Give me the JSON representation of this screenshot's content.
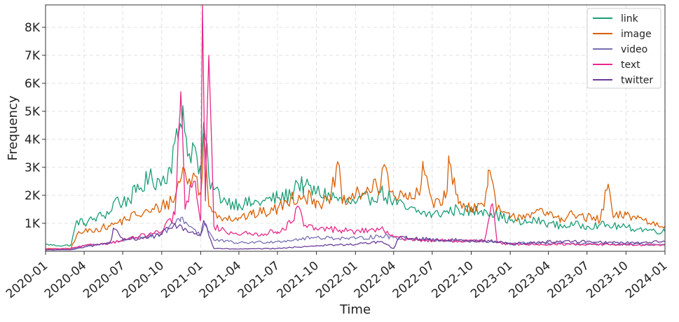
{
  "chart_data": {
    "type": "line",
    "xlabel": "Time",
    "ylabel": "Frequency",
    "x_range": [
      "2020-01-01",
      "2024-01-01"
    ],
    "ylim": [
      0,
      8800
    ],
    "grid": true,
    "legend_position": "top-right",
    "y_ticks": [
      {
        "value": 1000,
        "label": "1K"
      },
      {
        "value": 2000,
        "label": "2K"
      },
      {
        "value": 3000,
        "label": "3K"
      },
      {
        "value": 4000,
        "label": "4K"
      },
      {
        "value": 5000,
        "label": "5K"
      },
      {
        "value": 6000,
        "label": "6K"
      },
      {
        "value": 7000,
        "label": "7K"
      },
      {
        "value": 8000,
        "label": "8K"
      }
    ],
    "x_ticks": [
      {
        "value": "2020-01-01",
        "label": "2020-01"
      },
      {
        "value": "2020-04-01",
        "label": "2020-04"
      },
      {
        "value": "2020-07-01",
        "label": "2020-07"
      },
      {
        "value": "2020-10-01",
        "label": "2020-10"
      },
      {
        "value": "2021-01-01",
        "label": "2021-01"
      },
      {
        "value": "2021-04-01",
        "label": "2021-04"
      },
      {
        "value": "2021-07-01",
        "label": "2021-07"
      },
      {
        "value": "2021-10-01",
        "label": "2021-10"
      },
      {
        "value": "2022-01-01",
        "label": "2022-01"
      },
      {
        "value": "2022-04-01",
        "label": "2022-04"
      },
      {
        "value": "2022-07-01",
        "label": "2022-07"
      },
      {
        "value": "2022-10-01",
        "label": "2022-10"
      },
      {
        "value": "2023-01-01",
        "label": "2023-01"
      },
      {
        "value": "2023-04-01",
        "label": "2023-04"
      },
      {
        "value": "2023-07-01",
        "label": "2023-07"
      },
      {
        "value": "2023-10-01",
        "label": "2023-10"
      },
      {
        "value": "2024-01-01",
        "label": "2024-01"
      }
    ],
    "series": [
      {
        "name": "link",
        "color": "#1b9e77",
        "points": [
          [
            "2020-01-01",
            250
          ],
          [
            "2020-02-01",
            200
          ],
          [
            "2020-03-01",
            220
          ],
          [
            "2020-03-15",
            1100
          ],
          [
            "2020-04-01",
            1000
          ],
          [
            "2020-05-01",
            1200
          ],
          [
            "2020-06-01",
            1400
          ],
          [
            "2020-06-15",
            1900
          ],
          [
            "2020-07-01",
            1700
          ],
          [
            "2020-08-01",
            2100
          ],
          [
            "2020-09-01",
            2600
          ],
          [
            "2020-10-01",
            2500
          ],
          [
            "2020-10-20",
            3000
          ],
          [
            "2020-11-10",
            4200
          ],
          [
            "2020-11-20",
            5200
          ],
          [
            "2020-12-01",
            3400
          ],
          [
            "2020-12-15",
            3800
          ],
          [
            "2021-01-01",
            2600
          ],
          [
            "2021-01-08",
            4600
          ],
          [
            "2021-01-20",
            2700
          ],
          [
            "2021-02-01",
            2200
          ],
          [
            "2021-03-01",
            1800
          ],
          [
            "2021-04-01",
            1700
          ],
          [
            "2021-05-01",
            1700
          ],
          [
            "2021-06-01",
            1800
          ],
          [
            "2021-07-01",
            1900
          ],
          [
            "2021-08-01",
            2000
          ],
          [
            "2021-08-15",
            2500
          ],
          [
            "2021-09-01",
            2300
          ],
          [
            "2021-10-01",
            2100
          ],
          [
            "2021-11-01",
            2000
          ],
          [
            "2021-12-01",
            1800
          ],
          [
            "2022-01-01",
            1700
          ],
          [
            "2022-02-01",
            1900
          ],
          [
            "2022-03-01",
            2100
          ],
          [
            "2022-04-01",
            1800
          ],
          [
            "2022-05-01",
            1500
          ],
          [
            "2022-06-01",
            1400
          ],
          [
            "2022-07-01",
            1300
          ],
          [
            "2022-08-01",
            1400
          ],
          [
            "2022-09-01",
            1500
          ],
          [
            "2022-10-01",
            1400
          ],
          [
            "2022-11-01",
            1500
          ],
          [
            "2022-12-01",
            1300
          ],
          [
            "2023-01-01",
            1100
          ],
          [
            "2023-02-01",
            1000
          ],
          [
            "2023-03-01",
            1100
          ],
          [
            "2023-04-01",
            1000
          ],
          [
            "2023-05-01",
            900
          ],
          [
            "2023-06-01",
            950
          ],
          [
            "2023-07-01",
            900
          ],
          [
            "2023-08-01",
            950
          ],
          [
            "2023-09-01",
            900
          ],
          [
            "2023-10-01",
            850
          ],
          [
            "2023-11-01",
            800
          ],
          [
            "2023-12-01",
            750
          ],
          [
            "2024-01-01",
            700
          ]
        ]
      },
      {
        "name": "image",
        "color": "#d95f02",
        "points": [
          [
            "2020-01-01",
            100
          ],
          [
            "2020-02-01",
            80
          ],
          [
            "2020-03-01",
            100
          ],
          [
            "2020-03-15",
            600
          ],
          [
            "2020-04-01",
            700
          ],
          [
            "2020-05-01",
            800
          ],
          [
            "2020-06-01",
            900
          ],
          [
            "2020-07-01",
            1100
          ],
          [
            "2020-08-01",
            1300
          ],
          [
            "2020-09-01",
            1400
          ],
          [
            "2020-10-01",
            1600
          ],
          [
            "2020-11-01",
            1900
          ],
          [
            "2020-11-20",
            3000
          ],
          [
            "2020-12-01",
            2400
          ],
          [
            "2020-12-15",
            2800
          ],
          [
            "2021-01-01",
            2000
          ],
          [
            "2021-01-08",
            4200
          ],
          [
            "2021-01-20",
            1600
          ],
          [
            "2021-02-01",
            1400
          ],
          [
            "2021-03-01",
            1200
          ],
          [
            "2021-04-01",
            1200
          ],
          [
            "2021-05-01",
            1300
          ],
          [
            "2021-06-01",
            1400
          ],
          [
            "2021-07-01",
            1500
          ],
          [
            "2021-08-01",
            1900
          ],
          [
            "2021-09-01",
            2000
          ],
          [
            "2021-10-01",
            1800
          ],
          [
            "2021-11-01",
            1700
          ],
          [
            "2021-11-20",
            3200
          ],
          [
            "2021-12-01",
            1700
          ],
          [
            "2022-01-01",
            2000
          ],
          [
            "2022-02-01",
            2200
          ],
          [
            "2022-03-01",
            2300
          ],
          [
            "2022-03-10",
            3100
          ],
          [
            "2022-04-01",
            2000
          ],
          [
            "2022-05-01",
            1900
          ],
          [
            "2022-06-01",
            2000
          ],
          [
            "2022-06-10",
            3000
          ],
          [
            "2022-07-01",
            1800
          ],
          [
            "2022-08-01",
            1900
          ],
          [
            "2022-08-10",
            3200
          ],
          [
            "2022-09-01",
            1700
          ],
          [
            "2022-10-01",
            1600
          ],
          [
            "2022-11-01",
            1600
          ],
          [
            "2022-11-10",
            2900
          ],
          [
            "2022-12-01",
            1500
          ],
          [
            "2023-01-01",
            1200
          ],
          [
            "2023-02-01",
            1300
          ],
          [
            "2023-03-01",
            1400
          ],
          [
            "2023-04-01",
            1300
          ],
          [
            "2023-05-01",
            1200
          ],
          [
            "2023-06-01",
            1300
          ],
          [
            "2023-07-01",
            1200
          ],
          [
            "2023-08-01",
            1100
          ],
          [
            "2023-08-20",
            2400
          ],
          [
            "2023-09-01",
            1200
          ],
          [
            "2023-10-01",
            1300
          ],
          [
            "2023-11-01",
            1200
          ],
          [
            "2023-12-01",
            1000
          ],
          [
            "2024-01-01",
            900
          ]
        ]
      },
      {
        "name": "video",
        "color": "#7570b3",
        "points": [
          [
            "2020-01-01",
            50
          ],
          [
            "2020-03-01",
            60
          ],
          [
            "2020-04-01",
            200
          ],
          [
            "2020-06-01",
            300
          ],
          [
            "2020-08-01",
            500
          ],
          [
            "2020-10-01",
            600
          ],
          [
            "2020-11-15",
            1200
          ],
          [
            "2020-12-15",
            800
          ],
          [
            "2021-01-01",
            600
          ],
          [
            "2021-01-10",
            1000
          ],
          [
            "2021-02-01",
            400
          ],
          [
            "2021-04-01",
            300
          ],
          [
            "2021-07-01",
            350
          ],
          [
            "2021-10-01",
            500
          ],
          [
            "2022-01-01",
            450
          ],
          [
            "2022-03-01",
            550
          ],
          [
            "2022-05-01",
            450
          ],
          [
            "2022-07-01",
            400
          ],
          [
            "2022-10-01",
            350
          ],
          [
            "2023-01-01",
            300
          ],
          [
            "2023-04-01",
            280
          ],
          [
            "2023-07-01",
            260
          ],
          [
            "2023-10-01",
            250
          ],
          [
            "2024-01-01",
            240
          ]
        ]
      },
      {
        "name": "text",
        "color": "#e7298a",
        "points": [
          [
            "2020-01-01",
            80
          ],
          [
            "2020-03-01",
            100
          ],
          [
            "2020-04-01",
            200
          ],
          [
            "2020-06-01",
            300
          ],
          [
            "2020-07-01",
            400
          ],
          [
            "2020-08-01",
            500
          ],
          [
            "2020-09-01",
            600
          ],
          [
            "2020-10-01",
            700
          ],
          [
            "2020-11-01",
            1300
          ],
          [
            "2020-11-15",
            5700
          ],
          [
            "2020-11-25",
            1500
          ],
          [
            "2020-12-15",
            2500
          ],
          [
            "2021-01-01",
            1200
          ],
          [
            "2021-01-05",
            8800
          ],
          [
            "2021-01-12",
            1800
          ],
          [
            "2021-01-20",
            7000
          ],
          [
            "2021-02-01",
            900
          ],
          [
            "2021-03-01",
            700
          ],
          [
            "2021-05-01",
            600
          ],
          [
            "2021-07-01",
            700
          ],
          [
            "2021-08-01",
            1000
          ],
          [
            "2021-08-20",
            1600
          ],
          [
            "2021-09-01",
            900
          ],
          [
            "2021-10-01",
            800
          ],
          [
            "2021-11-01",
            800
          ],
          [
            "2021-12-01",
            750
          ],
          [
            "2022-01-01",
            700
          ],
          [
            "2022-02-01",
            750
          ],
          [
            "2022-03-01",
            800
          ],
          [
            "2022-04-01",
            500
          ],
          [
            "2022-05-01",
            450
          ],
          [
            "2022-06-01",
            400
          ],
          [
            "2022-07-01",
            380
          ],
          [
            "2022-08-01",
            400
          ],
          [
            "2022-09-01",
            350
          ],
          [
            "2022-10-01",
            380
          ],
          [
            "2022-11-01",
            360
          ],
          [
            "2022-11-20",
            1700
          ],
          [
            "2022-12-01",
            300
          ],
          [
            "2023-01-01",
            250
          ],
          [
            "2023-04-01",
            250
          ],
          [
            "2023-07-01",
            250
          ],
          [
            "2023-10-01",
            230
          ],
          [
            "2024-01-01",
            220
          ]
        ]
      },
      {
        "name": "twitter",
        "color": "#6a3d9a",
        "points": [
          [
            "2020-01-01",
            50
          ],
          [
            "2020-03-01",
            60
          ],
          [
            "2020-04-01",
            150
          ],
          [
            "2020-06-01",
            300
          ],
          [
            "2020-06-10",
            800
          ],
          [
            "2020-07-01",
            400
          ],
          [
            "2020-09-01",
            500
          ],
          [
            "2020-10-01",
            600
          ],
          [
            "2020-11-01",
            1000
          ],
          [
            "2020-12-01",
            700
          ],
          [
            "2021-01-01",
            600
          ],
          [
            "2021-01-08",
            1100
          ],
          [
            "2021-02-01",
            100
          ],
          [
            "2021-04-01",
            80
          ],
          [
            "2021-07-01",
            100
          ],
          [
            "2021-10-01",
            200
          ],
          [
            "2022-01-01",
            250
          ],
          [
            "2022-03-01",
            350
          ],
          [
            "2022-04-01",
            100
          ],
          [
            "2022-04-15",
            500
          ],
          [
            "2022-06-01",
            450
          ],
          [
            "2022-08-01",
            400
          ],
          [
            "2022-10-01",
            400
          ],
          [
            "2022-12-01",
            350
          ],
          [
            "2023-01-01",
            250
          ],
          [
            "2023-04-01",
            350
          ],
          [
            "2023-07-01",
            350
          ],
          [
            "2023-10-01",
            300
          ],
          [
            "2024-01-01",
            350
          ]
        ]
      }
    ]
  }
}
